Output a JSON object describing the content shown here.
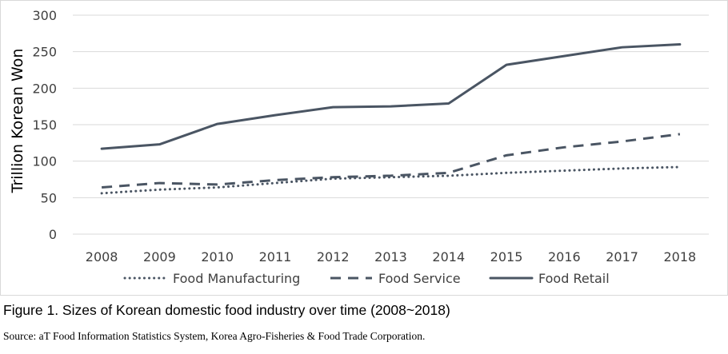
{
  "chart_data": {
    "type": "line",
    "categories": [
      "2008",
      "2009",
      "2010",
      "2011",
      "2012",
      "2013",
      "2014",
      "2015",
      "2016",
      "2017",
      "2018"
    ],
    "series": [
      {
        "name": "Food Manufacturing",
        "style": "dotted",
        "color": "#4a5563",
        "values": [
          56,
          61,
          64,
          70,
          76,
          78,
          80,
          84,
          87,
          90,
          92
        ]
      },
      {
        "name": "Food Service",
        "style": "dashed",
        "color": "#4a5563",
        "values": [
          64,
          70,
          68,
          74,
          78,
          80,
          84,
          108,
          119,
          127,
          137
        ]
      },
      {
        "name": "Food Retail",
        "style": "solid",
        "color": "#4a5563",
        "values": [
          117,
          123,
          151,
          163,
          174,
          175,
          179,
          232,
          244,
          256,
          260
        ]
      }
    ],
    "ylabel": "Trillion Korean Won",
    "ylim": [
      0,
      300
    ],
    "yticks": [
      0,
      50,
      100,
      150,
      200,
      250,
      300
    ],
    "grid": true,
    "gridColor": "#d9d9d9",
    "legend_position": "bottom"
  },
  "caption": "Figure 1. Sizes of Korean domestic food industry over time (2008~2018)",
  "source": "Source: aT Food Information Statistics System, Korea Agro-Fisheries & Food Trade Corporation."
}
